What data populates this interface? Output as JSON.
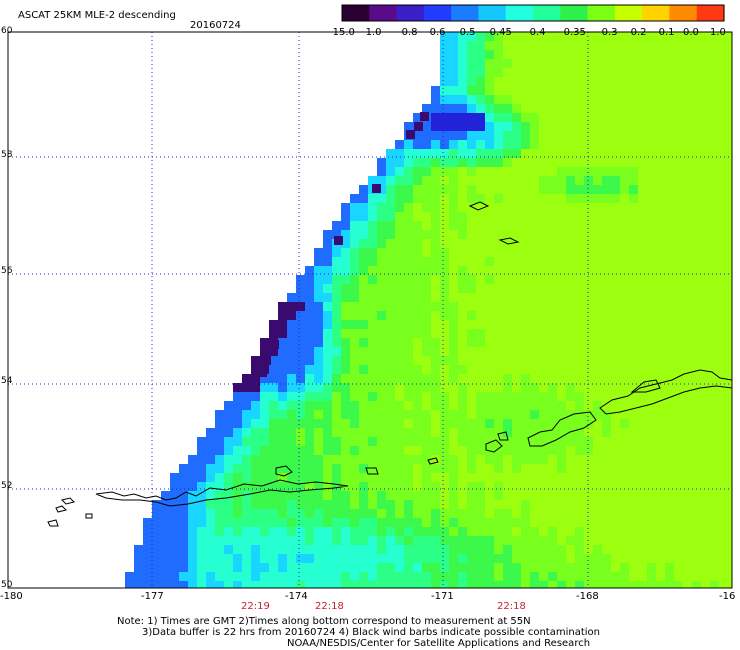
{
  "header": {
    "product": "ASCAT 25KM MLE-2 descending",
    "date": "20160724"
  },
  "colorbar": {
    "labels": [
      "-15.0",
      "-1.0",
      "-0.8",
      "-0.6",
      "-0.5",
      "-0.45",
      "-0.4",
      "-0.35",
      "-0.3",
      "-0.2",
      "-0.1",
      "0.0",
      "1.0"
    ],
    "colors": [
      "#2a0033",
      "#5a0b8a",
      "#3a1ec8",
      "#1f3cff",
      "#1a7cff",
      "#12c8ff",
      "#22ffe0",
      "#22ff9a",
      "#2ef04a",
      "#7cff12",
      "#c8ff00",
      "#ffd200",
      "#ff8a00",
      "#ff3a12"
    ]
  },
  "axes": {
    "lat_labels": [
      "60",
      "58",
      "56",
      "54",
      "52",
      "50"
    ],
    "lon_labels": [
      "-180",
      "-177",
      "-174",
      "-171",
      "-168",
      "-16"
    ]
  },
  "times": [
    "22:19",
    "22:18",
    "22:18"
  ],
  "notes": {
    "line1": "Note: 1) Times are GMT 2)Times along bottom correspond to measurement at 55N",
    "line2": "3)Data buffer is 22 hrs from 20160724 4) Black wind barbs indicate possible contamination",
    "line3": "NOAA/NESDIS/Center for Satellite Applications and Research"
  },
  "legend_colors": {
    "grid": "#2424c8",
    "time_text": "#c0282d"
  }
}
